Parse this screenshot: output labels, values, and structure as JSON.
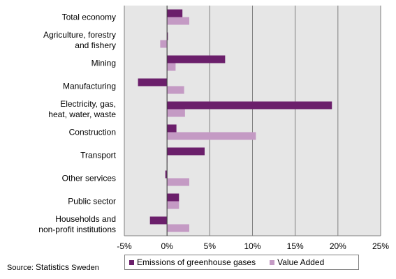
{
  "chart_data": {
    "type": "bar",
    "orientation": "horizontal",
    "categories": [
      "Total economy",
      "Agriculture, forestry and fishery",
      "Mining",
      "Manufacturing",
      "Electricity, gas, heat, water, waste",
      "Construction",
      "Transport",
      "Other services",
      "Public sector",
      "Households and non-profit institutions"
    ],
    "category_lines": [
      [
        "Total economy"
      ],
      [
        "Agriculture, forestry",
        "and fishery"
      ],
      [
        "Mining"
      ],
      [
        "Manufacturing"
      ],
      [
        "Electricity, gas,",
        "heat, water, waste"
      ],
      [
        "Construction"
      ],
      [
        "Transport"
      ],
      [
        "Other services"
      ],
      [
        "Public sector"
      ],
      [
        "Households and",
        "non-profit institutions"
      ]
    ],
    "series": [
      {
        "name": "Emissions of greenhouse gases",
        "color": "#6b1f6b",
        "values": [
          1.8,
          0.1,
          6.8,
          -3.4,
          19.3,
          1.1,
          4.4,
          -0.2,
          1.4,
          -2.0
        ]
      },
      {
        "name": "Value Added",
        "color": "#c49ac4",
        "values": [
          2.6,
          -0.8,
          1.0,
          2.0,
          2.1,
          10.4,
          0.0,
          2.6,
          1.4,
          2.6
        ]
      }
    ],
    "xlim": [
      -5,
      25
    ],
    "xticks": [
      -5,
      0,
      5,
      10,
      15,
      20,
      25
    ],
    "xtick_labels": [
      "-5%",
      "0%",
      "5%",
      "10%",
      "15%",
      "20%",
      "25%"
    ],
    "grid": true,
    "legend_position": "bottom",
    "plot_background": "#e6e6e6",
    "gridline_color": "#7f7f7f"
  },
  "source": {
    "prefix": "Source:",
    "name": "Statistics",
    "suffix": "Sweden"
  }
}
